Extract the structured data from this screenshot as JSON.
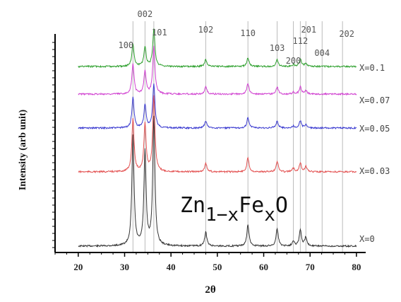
{
  "chart_data": {
    "type": "line",
    "xlabel": "2θ",
    "ylabel": "Intensity (arb unit)",
    "xlim": [
      15,
      82
    ],
    "xticks": [
      20,
      30,
      40,
      50,
      60,
      70,
      80
    ],
    "grid": false,
    "annotation": {
      "base": "Zn",
      "sub1": "1−x",
      "mid": "Fe",
      "sub2": "x",
      "end": "O"
    },
    "peaks": [
      {
        "hkl": "100",
        "x": 31.8
      },
      {
        "hkl": "002",
        "x": 34.4
      },
      {
        "hkl": "101",
        "x": 36.3
      },
      {
        "hkl": "102",
        "x": 47.5
      },
      {
        "hkl": "110",
        "x": 56.6
      },
      {
        "hkl": "103",
        "x": 62.9
      },
      {
        "hkl": "200",
        "x": 66.4
      },
      {
        "hkl": "112",
        "x": 67.9
      },
      {
        "hkl": "201",
        "x": 69.1
      },
      {
        "hkl": "004",
        "x": 72.6
      },
      {
        "hkl": "202",
        "x": 77.0
      }
    ],
    "series": [
      {
        "name": "X=0",
        "color": "#333333",
        "offset": 0,
        "intensities": [
          0.62,
          0.53,
          0.72,
          0.08,
          0.12,
          0.1,
          0.03,
          0.09,
          0.05,
          0.0,
          0.0
        ]
      },
      {
        "name": "X=0.03",
        "color": "#e35050",
        "offset": 1,
        "intensities": [
          0.3,
          0.27,
          0.43,
          0.05,
          0.08,
          0.06,
          0.02,
          0.05,
          0.03,
          0.0,
          0.0
        ]
      },
      {
        "name": "X=0.05",
        "color": "#3a3ad0",
        "offset": 2,
        "intensities": [
          0.17,
          0.13,
          0.25,
          0.04,
          0.06,
          0.04,
          0.01,
          0.04,
          0.02,
          0.0,
          0.0
        ]
      },
      {
        "name": "X=0.07",
        "color": "#d040d0",
        "offset": 3,
        "intensities": [
          0.17,
          0.13,
          0.27,
          0.04,
          0.06,
          0.04,
          0.01,
          0.04,
          0.02,
          0.0,
          0.0
        ]
      },
      {
        "name": "X=0.1",
        "color": "#2ea02e",
        "offset": 4,
        "intensities": [
          0.13,
          0.11,
          0.21,
          0.04,
          0.05,
          0.04,
          0.01,
          0.04,
          0.02,
          0.0,
          0.0
        ]
      }
    ]
  }
}
